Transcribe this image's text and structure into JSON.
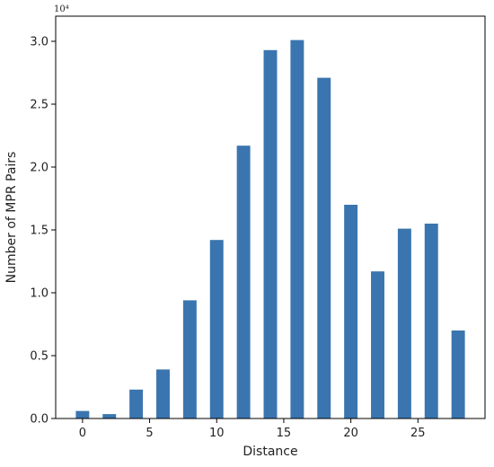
{
  "chart_data": {
    "type": "bar",
    "x": [
      0,
      2,
      4,
      6,
      8,
      10,
      12,
      14,
      16,
      18,
      20,
      22,
      24,
      26,
      28
    ],
    "values": [
      600,
      350,
      2300,
      3900,
      9400,
      14200,
      21700,
      29300,
      30100,
      27100,
      17000,
      11700,
      15100,
      15500,
      7000
    ],
    "xlabel": "Distance",
    "ylabel": "Number of MPR Pairs",
    "y_multiplier_label": "10⁴",
    "xlim": [
      -2,
      30
    ],
    "ylim": [
      0,
      32000
    ],
    "x_ticks": [
      0,
      5,
      10,
      15,
      20,
      25
    ],
    "x_tick_labels": [
      "0",
      "5",
      "10",
      "15",
      "20",
      "25"
    ],
    "y_ticks": [
      0,
      5000,
      10000,
      15000,
      20000,
      25000,
      30000
    ],
    "y_tick_labels": [
      "0.0",
      "0.5",
      "1.0",
      "1.5",
      "2.0",
      "2.5",
      "3.0"
    ],
    "bar_width": 1.0,
    "bar_color": "#3a75af",
    "grid": false,
    "legend": "none"
  }
}
